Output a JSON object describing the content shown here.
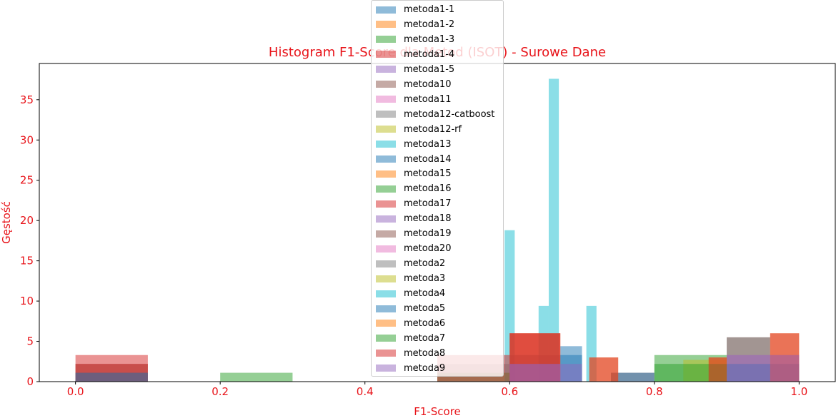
{
  "chart_data": {
    "type": "histogram",
    "title": "Histogram F1-Score dla Metod (ISOT) - Surowe Dane",
    "xlabel": "F1-Score",
    "ylabel": "Gęstość",
    "xlim": [
      -0.05,
      1.05
    ],
    "ylim": [
      0,
      39.5
    ],
    "xticks": [
      "0.0",
      "0.2",
      "0.4",
      "0.6",
      "0.8",
      "1.0"
    ],
    "yticks": [
      "0",
      "5",
      "10",
      "15",
      "20",
      "25",
      "30",
      "35"
    ],
    "label_color": "#e8141a",
    "series": [
      {
        "name": "metoda1-1",
        "color": "#1f77b4",
        "bars": [
          {
            "x0": 0.0,
            "x1": 0.1,
            "h": 1.1
          }
        ]
      },
      {
        "name": "metoda1-2",
        "color": "#ff7f0e",
        "bars": []
      },
      {
        "name": "metoda1-3",
        "color": "#2ca02c",
        "bars": []
      },
      {
        "name": "metoda1-4",
        "color": "#d62728",
        "bars": [
          {
            "x0": 0.0,
            "x1": 0.1,
            "h": 2.2
          }
        ]
      },
      {
        "name": "metoda1-5",
        "color": "#9467bd",
        "bars": []
      },
      {
        "name": "metoda10",
        "color": "#8c564b",
        "bars": [
          {
            "x0": 0.0,
            "x1": 0.1,
            "h": 2.2
          },
          {
            "x0": 0.74,
            "x1": 0.8,
            "h": 1.1
          }
        ]
      },
      {
        "name": "metoda11",
        "color": "#e377c2",
        "bars": []
      },
      {
        "name": "metoda12-catboost",
        "color": "#7f7f7f",
        "bars": [
          {
            "x0": 0.5,
            "x1": 0.6,
            "h": 2.2
          }
        ]
      },
      {
        "name": "metoda12-rf",
        "color": "#bcbd22",
        "bars": []
      },
      {
        "name": "metoda13",
        "color": "#17becf",
        "bars": [
          {
            "x0": 0.593,
            "x1": 0.607,
            "h": 18.8
          },
          {
            "x0": 0.64,
            "x1": 0.654,
            "h": 9.4
          },
          {
            "x0": 0.654,
            "x1": 0.668,
            "h": 37.6
          },
          {
            "x0": 0.706,
            "x1": 0.72,
            "h": 9.4
          }
        ]
      },
      {
        "name": "metoda14",
        "color": "#1f77b4",
        "bars": [
          {
            "x0": 0.6,
            "x1": 0.7,
            "h": 3.3
          },
          {
            "x0": 0.67,
            "x1": 0.7,
            "h": 4.4
          }
        ]
      },
      {
        "name": "metoda15",
        "color": "#ff7f0e",
        "bars": [
          {
            "x0": 0.6,
            "x1": 0.67,
            "h": 6.0
          }
        ]
      },
      {
        "name": "metoda16",
        "color": "#2ca02c",
        "bars": [
          {
            "x0": 0.2,
            "x1": 0.3,
            "h": 1.1
          },
          {
            "x0": 0.5,
            "x1": 0.6,
            "h": 1.1
          },
          {
            "x0": 0.8,
            "x1": 0.9,
            "h": 3.3
          }
        ]
      },
      {
        "name": "metoda17",
        "color": "#d62728",
        "bars": [
          {
            "x0": 0.0,
            "x1": 0.1,
            "h": 3.3
          },
          {
            "x0": 0.5,
            "x1": 0.6,
            "h": 3.3
          },
          {
            "x0": 0.6,
            "x1": 0.67,
            "h": 6.0
          }
        ]
      },
      {
        "name": "metoda18",
        "color": "#9467bd",
        "bars": [
          {
            "x0": 0.6,
            "x1": 0.67,
            "h": 2.2
          },
          {
            "x0": 0.9,
            "x1": 1.0,
            "h": 2.2
          }
        ]
      },
      {
        "name": "metoda19",
        "color": "#8c564b",
        "bars": [
          {
            "x0": 0.9,
            "x1": 0.96,
            "h": 5.5
          }
        ]
      },
      {
        "name": "metoda20",
        "color": "#e377c2",
        "bars": [
          {
            "x0": 0.9,
            "x1": 1.0,
            "h": 3.3
          }
        ]
      },
      {
        "name": "metoda2",
        "color": "#7f7f7f",
        "bars": [
          {
            "x0": 0.9,
            "x1": 0.96,
            "h": 5.5
          }
        ]
      },
      {
        "name": "metoda3",
        "color": "#bcbd22",
        "bars": [
          {
            "x0": 0.84,
            "x1": 0.9,
            "h": 2.7
          }
        ]
      },
      {
        "name": "metoda4",
        "color": "#17becf",
        "bars": []
      },
      {
        "name": "metoda5",
        "color": "#1f77b4",
        "bars": [
          {
            "x0": 0.0,
            "x1": 0.1,
            "h": 1.1
          },
          {
            "x0": 0.74,
            "x1": 0.8,
            "h": 1.1
          },
          {
            "x0": 0.9,
            "x1": 1.0,
            "h": 2.2
          }
        ]
      },
      {
        "name": "metoda6",
        "color": "#ff7f0e",
        "bars": [
          {
            "x0": 0.71,
            "x1": 0.75,
            "h": 3.0
          },
          {
            "x0": 0.96,
            "x1": 1.0,
            "h": 6.0
          },
          {
            "x0": 0.875,
            "x1": 0.9,
            "h": 3.0
          }
        ]
      },
      {
        "name": "metoda7",
        "color": "#2ca02c",
        "bars": [
          {
            "x0": 0.8,
            "x1": 0.9,
            "h": 2.2
          }
        ]
      },
      {
        "name": "metoda8",
        "color": "#d62728",
        "bars": [
          {
            "x0": 0.6,
            "x1": 0.67,
            "h": 6.0
          },
          {
            "x0": 0.71,
            "x1": 0.75,
            "h": 3.0
          },
          {
            "x0": 0.96,
            "x1": 1.0,
            "h": 6.0
          },
          {
            "x0": 0.875,
            "x1": 0.9,
            "h": 3.0
          }
        ]
      },
      {
        "name": "metoda9",
        "color": "#9467bd",
        "bars": [
          {
            "x0": 0.6,
            "x1": 0.7,
            "h": 2.2
          },
          {
            "x0": 0.9,
            "x1": 1.0,
            "h": 3.3
          }
        ]
      }
    ]
  }
}
